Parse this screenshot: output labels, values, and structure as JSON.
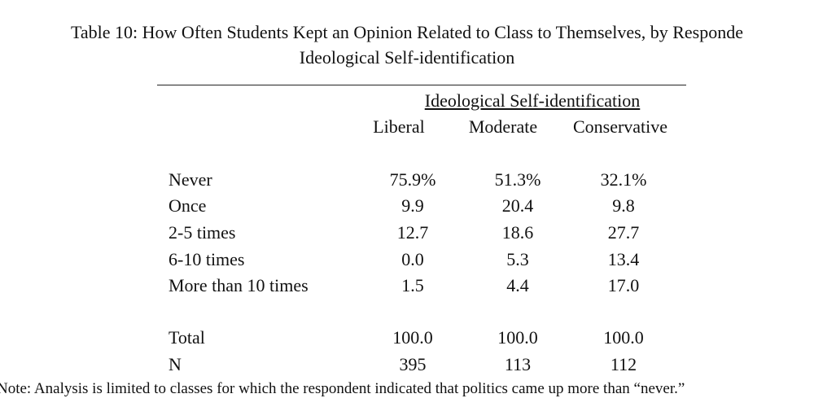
{
  "title": [
    "Table 10: How Often Students Kept an Opinion Related to Class to Themselves, by Responde",
    "Ideological Self-identification"
  ],
  "table": {
    "group_header": "Ideological Self-identification",
    "columns": [
      "Liberal",
      "Moderate",
      "Conservative"
    ],
    "rows": [
      {
        "label": "Never",
        "cells": [
          "75.9%",
          "51.3%",
          "32.1%"
        ]
      },
      {
        "label": "Once",
        "cells": [
          "9.9",
          "20.4",
          "9.8"
        ]
      },
      {
        "label": "2-5 times",
        "cells": [
          "12.7",
          "18.6",
          "27.7"
        ]
      },
      {
        "label": "6-10 times",
        "cells": [
          "0.0",
          "5.3",
          "13.4"
        ]
      },
      {
        "label": "More than 10 times",
        "cells": [
          "1.5",
          "4.4",
          "17.0"
        ]
      },
      {
        "label": "Total",
        "cells": [
          "100.0",
          "100.0",
          "100.0"
        ]
      },
      {
        "label": "N",
        "cells": [
          "395",
          "113",
          "112"
        ]
      }
    ]
  },
  "note": "Note: Analysis is limited to classes for which the respondent indicated that politics came up more than “never.”"
}
